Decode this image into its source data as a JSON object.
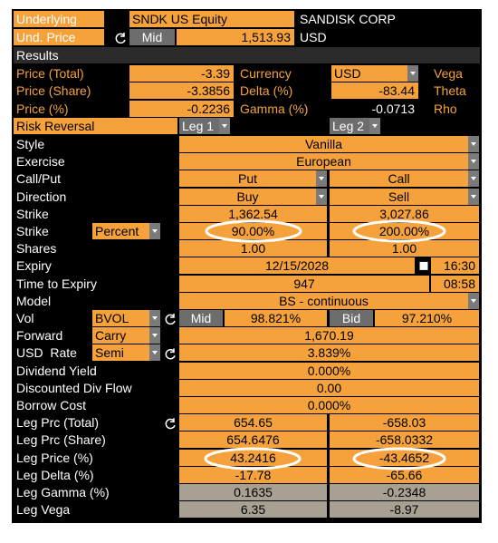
{
  "header": {
    "underlying_label": "Underlying",
    "ticker": "SNDK US Equity",
    "name": "SANDISK CORP",
    "und_price_label": "Und. Price",
    "price_source": "Mid",
    "und_price": "1,513.93",
    "currency": "USD"
  },
  "results": {
    "title": "Results",
    "rows": [
      {
        "label": "Price (Total)",
        "value": "-3.39",
        "label2": "Currency",
        "value2": "USD",
        "dropdown": true,
        "label3": "Vega"
      },
      {
        "label": "Price (Share)",
        "value": "-3.3856",
        "label2": "Delta (%)",
        "value2": "-83.44",
        "label3": "Theta"
      },
      {
        "label": "Price (%)",
        "value": "-0.2236",
        "label2": "Gamma (%)",
        "value2": "-0.0713",
        "plain": true,
        "label3": "Rho"
      }
    ]
  },
  "structure": {
    "title": "Risk Reversal",
    "legs": [
      "Leg 1",
      "Leg 2"
    ]
  },
  "rows": [
    {
      "label": "Style",
      "value": "Vanilla",
      "dropdown": true
    },
    {
      "label": "Exercise",
      "value": "European",
      "dropdown": true
    },
    {
      "label": "Call/Put",
      "legs": [
        "Put",
        "Call"
      ],
      "dropdown": true
    },
    {
      "label": "Direction",
      "legs": [
        "Buy",
        "Sell"
      ],
      "dropdown": true
    },
    {
      "label": "Strike",
      "legs": [
        "1,362.54",
        "3,027.86"
      ]
    },
    {
      "label": "Strike",
      "selector": "Percent",
      "legs": [
        "90.00%",
        "200.00%"
      ]
    },
    {
      "label": "Shares",
      "legs": [
        "1.00",
        "1.00"
      ]
    },
    {
      "label": "Expiry",
      "value": "12/15/2028",
      "time": "16:30",
      "calendar": true
    },
    {
      "label": "Time to Expiry",
      "value": "947",
      "time": "08:58"
    },
    {
      "label": "Model",
      "value": "BS - continuous",
      "dropdown": true
    },
    {
      "label": "Vol",
      "selector": "BVOL",
      "refresh": true,
      "sources": [
        "Mid",
        "Bid"
      ],
      "legs": [
        "98.821%",
        "97.210%"
      ]
    },
    {
      "label": "Forward",
      "selector": "Carry",
      "value": "1,670.19"
    },
    {
      "label": "USD  Rate",
      "selector": "Semi",
      "refresh": true,
      "value": "3.839%"
    },
    {
      "label": "Dividend Yield",
      "value": "0.000%"
    },
    {
      "label": "Discounted Div Flow",
      "value": "0.00"
    },
    {
      "label": "Borrow Cost",
      "value": "0.000%"
    },
    {
      "label": "Leg Prc (Total)",
      "refresh": true,
      "legs": [
        "654.65",
        "-658.03"
      ]
    },
    {
      "label": "Leg Prc (Share)",
      "legs": [
        "654.6476",
        "-658.0332"
      ]
    },
    {
      "label": "Leg Price (%)",
      "legs": [
        "43.2416",
        "-43.4652"
      ]
    },
    {
      "label": "Leg Delta (%)",
      "legs": [
        "-17.78",
        "-65.66"
      ]
    },
    {
      "label": "Leg Gamma (%)",
      "legs": [
        "0.1635",
        "-0.2348"
      ],
      "readonly": true
    },
    {
      "label": "Leg Vega",
      "legs": [
        "6.35",
        "-8.97"
      ],
      "readonly": true
    }
  ]
}
